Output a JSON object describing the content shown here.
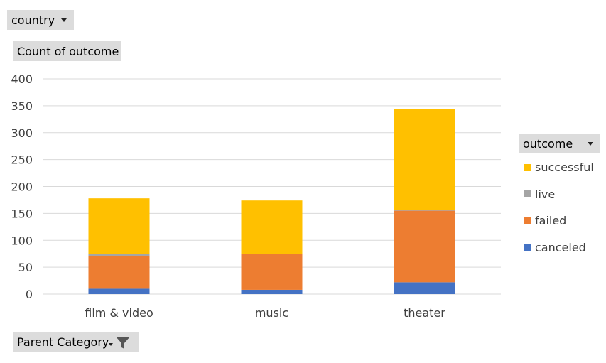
{
  "filters": {
    "country_label": "country",
    "value_label": "Count of outcome",
    "legend_title": "outcome",
    "axis_field_label": "Parent Category"
  },
  "chart_data": {
    "type": "bar",
    "stacked": true,
    "categories": [
      "film & video",
      "music",
      "theater"
    ],
    "ylim": [
      0,
      400
    ],
    "yticks": [
      0,
      50,
      100,
      150,
      200,
      250,
      300,
      350,
      400
    ],
    "grid": true,
    "legend_position": "right",
    "series": [
      {
        "name": "canceled",
        "color": "#4472C4",
        "values": [
          10,
          8,
          22
        ]
      },
      {
        "name": "failed",
        "color": "#ED7D31",
        "values": [
          60,
          67,
          133
        ]
      },
      {
        "name": "live",
        "color": "#A5A5A5",
        "values": [
          5,
          0,
          2
        ]
      },
      {
        "name": "successful",
        "color": "#FFC000",
        "values": [
          103,
          99,
          187
        ]
      }
    ],
    "legend_order": [
      "successful",
      "live",
      "failed",
      "canceled"
    ]
  }
}
